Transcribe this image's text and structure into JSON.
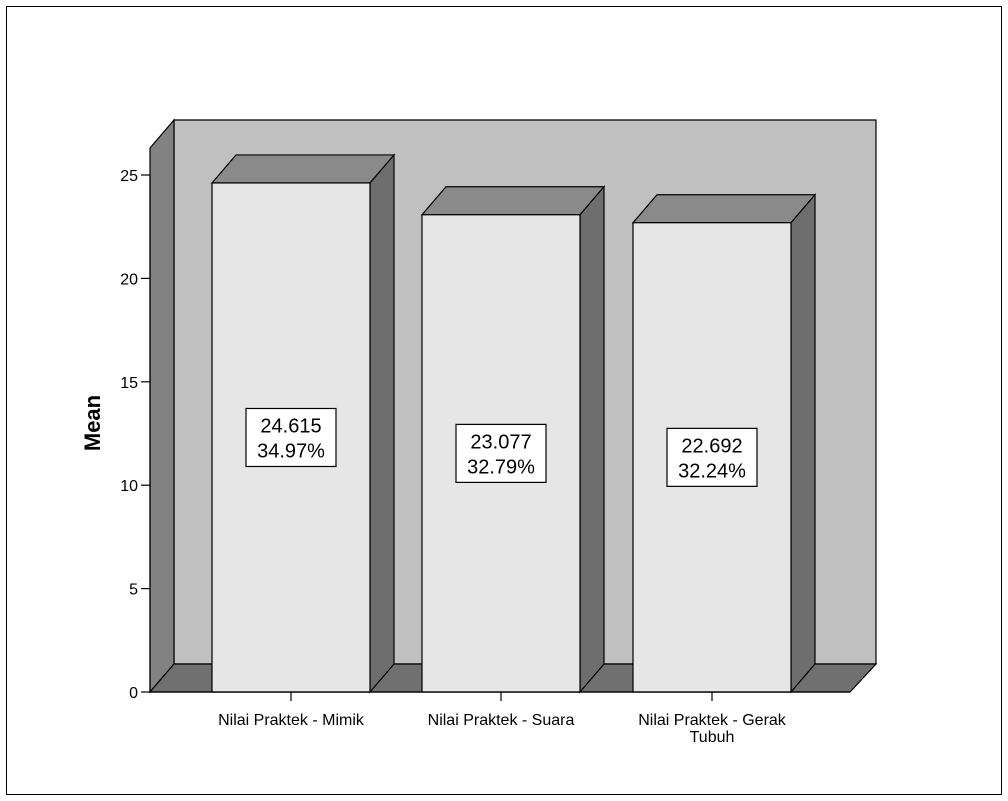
{
  "chart_data": {
    "type": "bar",
    "categories": [
      [
        "Nilai Praktek - Mimik"
      ],
      [
        "Nilai Praktek - Suara"
      ],
      [
        "Nilai Praktek - Gerak",
        "Tubuh"
      ]
    ],
    "values": [
      24.615,
      23.077,
      22.692
    ],
    "value_labels": [
      "24.615",
      "23.077",
      "22.692"
    ],
    "percent_labels": [
      "34.97%",
      "32.79%",
      "32.24%"
    ],
    "ylabel": "Mean",
    "ylim": [
      0,
      25
    ],
    "yticks": [
      0,
      5,
      10,
      15,
      20,
      25
    ],
    "three_d": true,
    "grid": false,
    "colors": {
      "bar_front": "#e6e6e6",
      "bar_top": "#8a8a8a",
      "bar_side": "#6e6e6e",
      "back_wall": "#c0c0c0",
      "side_wall": "#828282",
      "floor": "#707070"
    }
  }
}
